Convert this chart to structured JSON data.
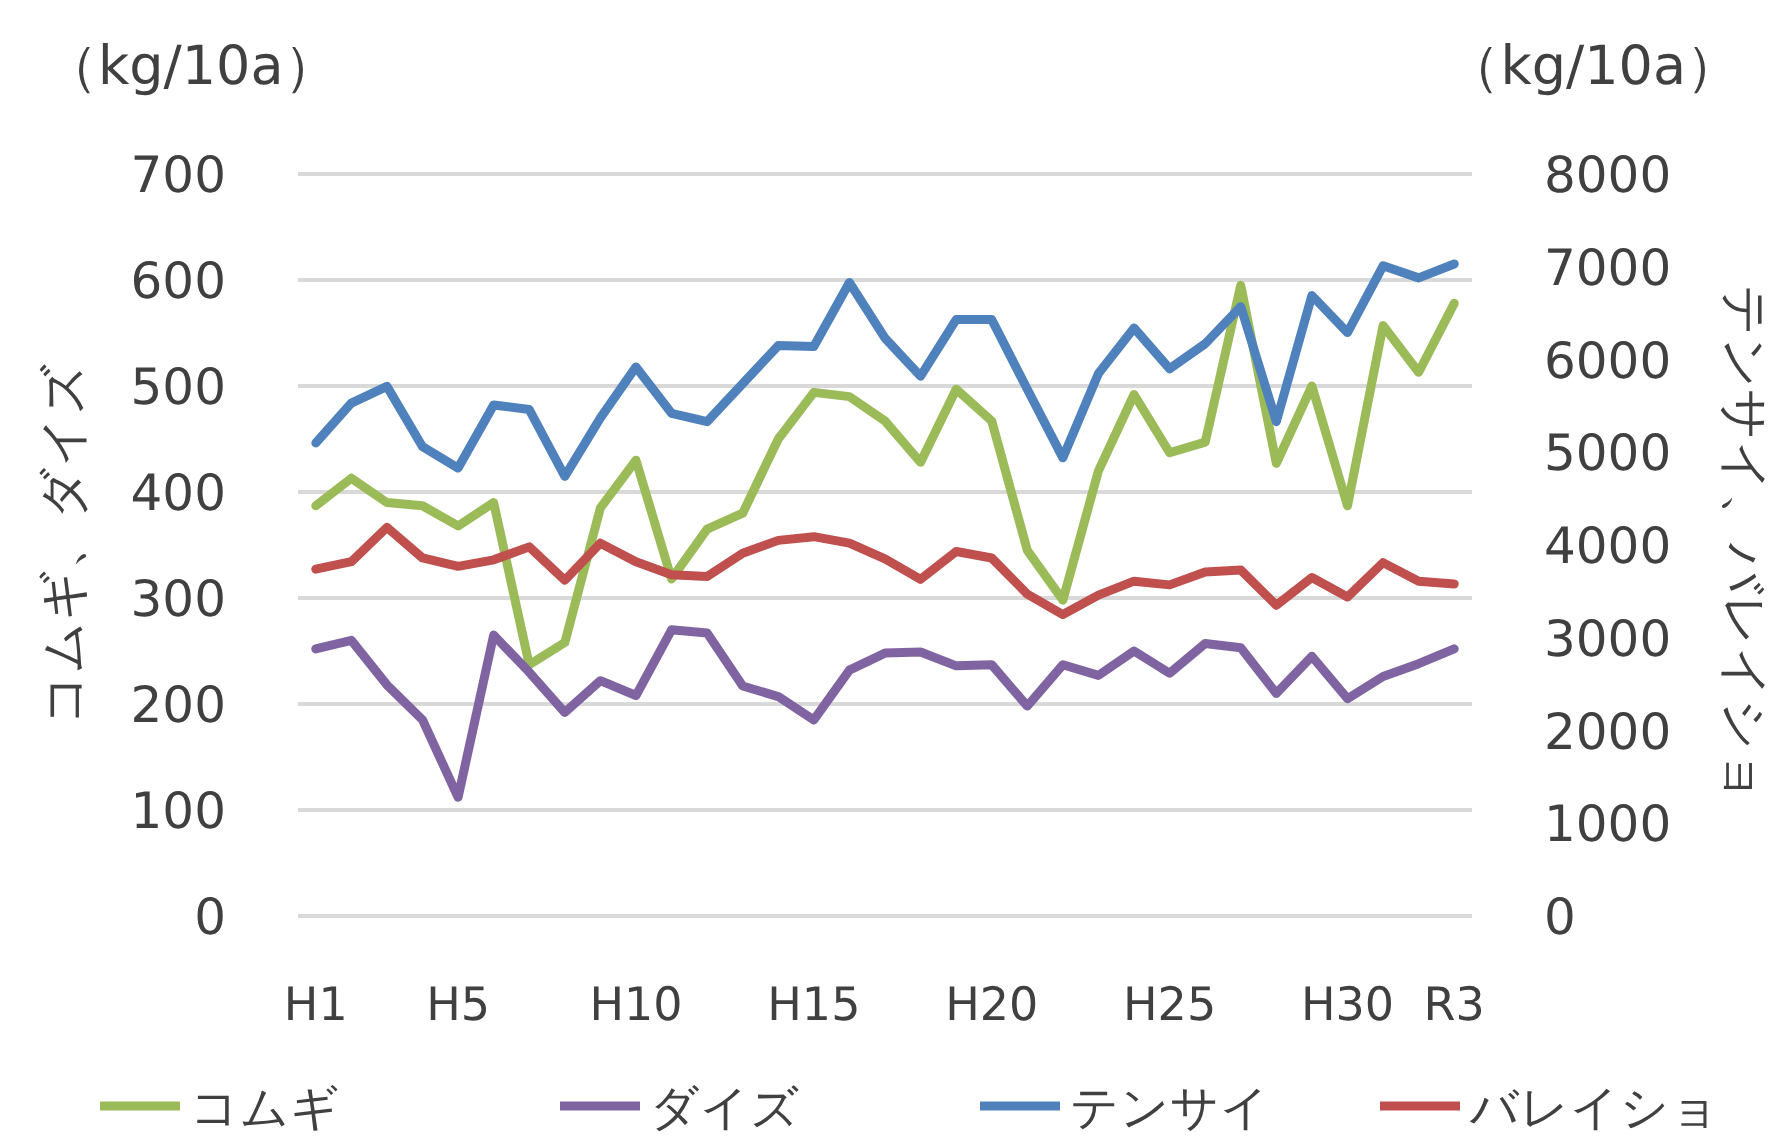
{
  "chart_data": {
    "type": "line",
    "ylabel": "コムギ、ダイズ",
    "y2label": "テンサイ、バレイショ",
    "annotations": [
      "（kg/10a）",
      "（kg/10a）"
    ],
    "categories": [
      "H1",
      null,
      null,
      null,
      "H5",
      null,
      null,
      null,
      null,
      "H10",
      null,
      null,
      null,
      null,
      "H15",
      null,
      null,
      null,
      null,
      "H20",
      null,
      null,
      null,
      null,
      "H25",
      null,
      null,
      null,
      null,
      "H30",
      null,
      null,
      "R3"
    ],
    "ylim": [
      0,
      700
    ],
    "yticks": [
      0,
      100,
      200,
      300,
      400,
      500,
      600,
      700
    ],
    "y2lim": [
      0,
      8000
    ],
    "y2ticks": [
      0,
      1000,
      2000,
      3000,
      4000,
      5000,
      6000,
      7000,
      8000
    ],
    "grid": "y",
    "legend": "bottom",
    "marker": "none",
    "line_style": "solid",
    "series": [
      {
        "name": "コムギ",
        "color": "#9bbb59",
        "values": [
          387,
          413,
          390,
          387,
          368,
          390,
          237,
          258,
          385,
          430,
          318,
          365,
          380,
          450,
          494,
          490,
          467,
          428,
          497,
          467,
          345,
          298,
          420,
          492,
          437,
          447,
          595,
          427,
          500,
          387,
          557,
          513,
          578
        ]
      },
      {
        "name": "ダイズ",
        "color": "#8064a2",
        "values": [
          252,
          260,
          218,
          185,
          112,
          265,
          230,
          192,
          222,
          208,
          270,
          267,
          217,
          207,
          185,
          232,
          248,
          249,
          236,
          237,
          198,
          237,
          227,
          250,
          229,
          257,
          253,
          210,
          245,
          205,
          226,
          238,
          252
        ]
      },
      {
        "name": "テンサイ",
        "color": "#4f81bd",
        "axis": "y2",
        "values": [
          5100,
          5530,
          5710,
          5060,
          4830,
          5510,
          5460,
          4740,
          5370,
          5920,
          5420,
          5330,
          5740,
          6150,
          6140,
          6830,
          6230,
          5820,
          6430,
          6430,
          5680,
          4940,
          5850,
          6340,
          5900,
          6170,
          6570,
          5330,
          6690,
          6290,
          7010,
          6880,
          7030
        ]
      },
      {
        "name": "バレイショ",
        "color": "#c0504d",
        "axis": "y2",
        "values": [
          3740,
          3820,
          4190,
          3860,
          3770,
          3840,
          3980,
          3620,
          4020,
          3820,
          3680,
          3660,
          3910,
          4050,
          4090,
          4020,
          3850,
          3630,
          3930,
          3860,
          3470,
          3250,
          3460,
          3610,
          3570,
          3710,
          3730,
          3350,
          3650,
          3440,
          3810,
          3610,
          3580
        ]
      }
    ]
  }
}
